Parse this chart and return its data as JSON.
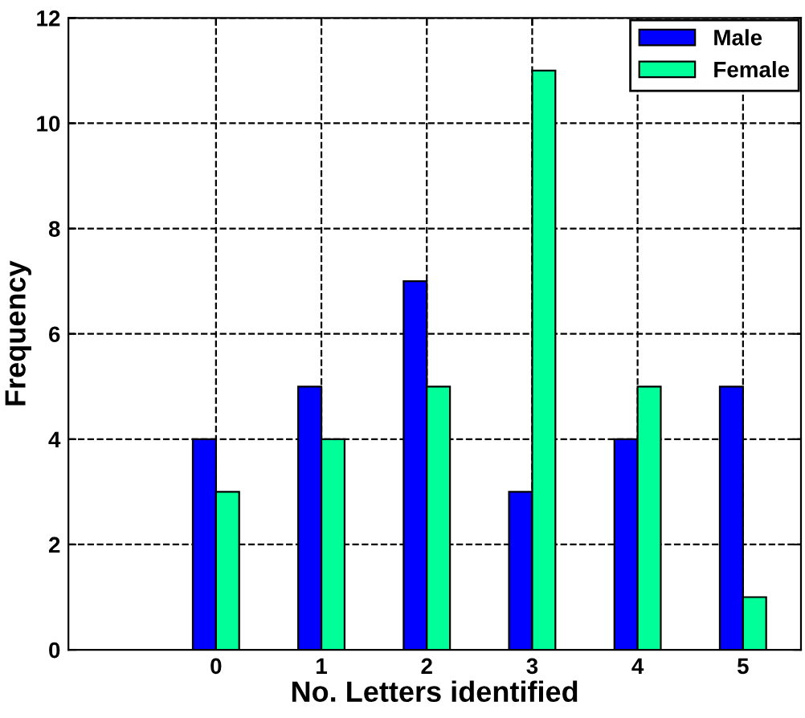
{
  "chart_data": {
    "type": "bar",
    "xlabel": "No. Letters identified",
    "ylabel": "Frequency",
    "categories": [
      "0",
      "1",
      "2",
      "3",
      "4",
      "5"
    ],
    "series": [
      {
        "name": "Male",
        "color": "#0000ff",
        "values": [
          4,
          5,
          7,
          3,
          4,
          5
        ]
      },
      {
        "name": "Female",
        "color": "#00ff99",
        "values": [
          3,
          4,
          5,
          11,
          5,
          1
        ]
      }
    ],
    "ylim": [
      0,
      12
    ],
    "yticks": [
      0,
      2,
      4,
      6,
      8,
      10,
      12
    ],
    "grid": true,
    "legend": "top right",
    "line_style": "dashed"
  }
}
